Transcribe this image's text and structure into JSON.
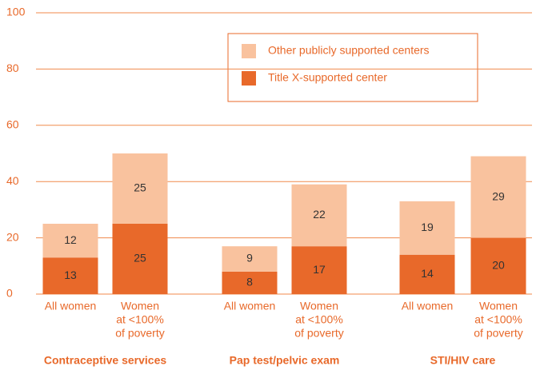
{
  "chart_data": {
    "type": "stacked-bar",
    "groups": [
      "Contraceptive services",
      "Pap test/pelvic exam",
      "STI/HIV care"
    ],
    "categories": [
      [
        "All women"
      ],
      [
        "Women",
        "at <100%",
        "of poverty"
      ],
      [
        "All women"
      ],
      [
        "Women",
        "at <100%",
        "of poverty"
      ],
      [
        "All women"
      ],
      [
        "Women",
        "at <100%",
        "of poverty"
      ]
    ],
    "series": [
      {
        "name": "Title X-supported center",
        "color": "#e8692a",
        "values": [
          13,
          25,
          8,
          17,
          14,
          20
        ]
      },
      {
        "name": "Other publicly supported centers",
        "color": "#f9c29e",
        "values": [
          12,
          25,
          9,
          22,
          19,
          29
        ]
      }
    ],
    "ylim": [
      0,
      100
    ],
    "yticks": [
      0,
      20,
      40,
      60,
      80,
      100
    ],
    "grid": true
  }
}
